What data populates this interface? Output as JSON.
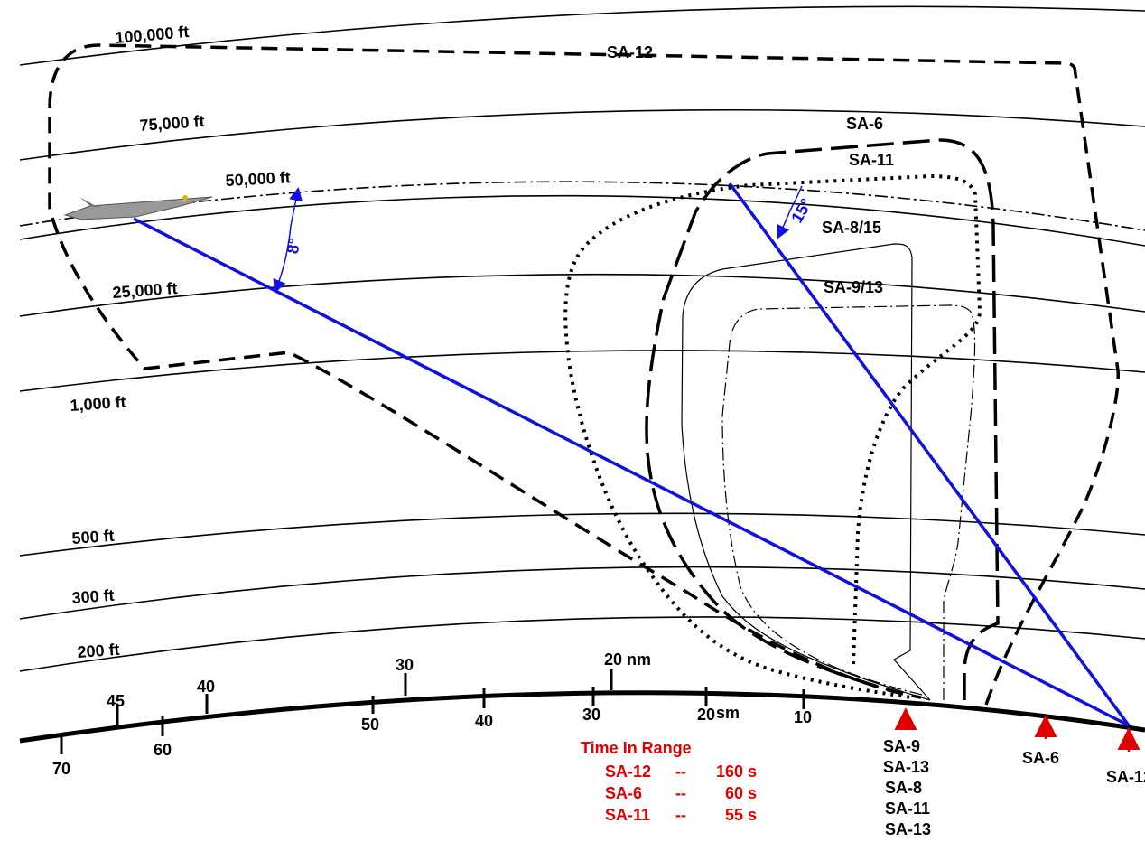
{
  "altitudes": [
    "100,000 ft",
    "75,000 ft",
    "50,000 ft",
    "25,000 ft",
    "1,000 ft",
    "500 ft",
    "300 ft",
    "200 ft"
  ],
  "envelopes": [
    "SA-12",
    "SA-6",
    "SA-11",
    "SA-8/15",
    "SA-9/13"
  ],
  "angles": [
    "8°",
    "15°"
  ],
  "nautical_scale": [
    "45",
    "40",
    "30",
    "20 nm"
  ],
  "statute_scale": [
    "70",
    "60",
    "50",
    "40",
    "30",
    "20",
    "sm",
    "10"
  ],
  "time_in_range": {
    "title": "Time In Range",
    "rows": [
      [
        "SA-12",
        "--",
        "160 s"
      ],
      [
        "SA-6",
        "--",
        "60 s"
      ],
      [
        "SA-11",
        "--",
        "55 s"
      ]
    ]
  },
  "sites": [
    [
      "SA-9",
      "SA-13",
      "SA-8",
      "SA-11",
      "SA-13"
    ],
    [
      "SA-6"
    ],
    [
      "SA-12"
    ]
  ]
}
